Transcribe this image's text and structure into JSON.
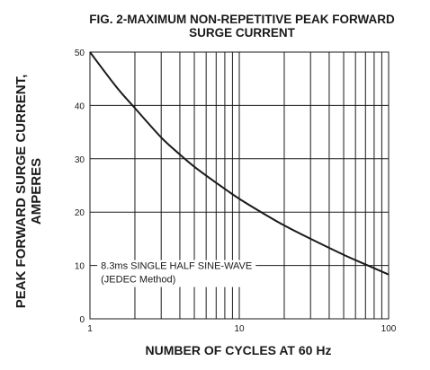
{
  "chart_data": {
    "type": "line",
    "title_line1": "FIG. 2-MAXIMUM NON-REPETITIVE PEAK FORWARD",
    "title_line2": "SURGE CURRENT",
    "ylabel_line1": "PEAK  FORWARD SURGE CURRENT,",
    "ylabel_line2": "AMPERES",
    "xlabel": "NUMBER OF CYCLES AT 60 Hz",
    "x_scale": "log",
    "xlim": [
      1,
      100
    ],
    "ylim": [
      0,
      50
    ],
    "x_ticks": [
      1,
      10,
      100
    ],
    "x_tick_labels": [
      "1",
      "10",
      "100"
    ],
    "y_ticks": [
      0,
      10,
      20,
      30,
      40,
      50
    ],
    "y_tick_labels": [
      "0",
      "10",
      "20",
      "30",
      "40",
      "50"
    ],
    "grid": true,
    "series": [
      {
        "x": [
          1,
          1.5,
          2,
          3,
          4,
          5,
          7,
          10,
          15,
          20,
          30,
          50,
          70,
          100
        ],
        "values": [
          50,
          43.5,
          39.5,
          34,
          30.8,
          28.5,
          25.5,
          22.5,
          19.5,
          17.5,
          15,
          12,
          10.2,
          8.3
        ]
      }
    ],
    "annotation_line1": "8.3ms SINGLE HALF SINE-WAVE",
    "annotation_line2": "(JEDEC Method)"
  }
}
